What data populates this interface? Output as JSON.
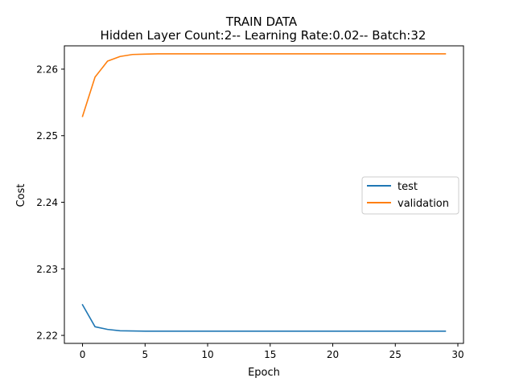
{
  "chart_data": {
    "type": "line",
    "title": "TRAIN DATA",
    "subtitle": "Hidden Layer Count:2-- Learning Rate:0.02-- Batch:32",
    "xlabel": "Epoch",
    "ylabel": "Cost",
    "xlim": [
      -1.45,
      30.45
    ],
    "ylim": [
      2.2188,
      2.2635
    ],
    "xticks": [
      0,
      5,
      10,
      15,
      20,
      25,
      30
    ],
    "xtick_labels": [
      "0",
      "5",
      "10",
      "15",
      "20",
      "25",
      "30"
    ],
    "yticks": [
      2.22,
      2.23,
      2.24,
      2.25,
      2.26
    ],
    "ytick_labels": [
      "2.22",
      "2.23",
      "2.24",
      "2.25",
      "2.26"
    ],
    "grid": false,
    "legend_position": "center-right",
    "x": [
      0,
      1,
      2,
      3,
      4,
      5,
      6,
      7,
      8,
      9,
      10,
      11,
      12,
      13,
      14,
      15,
      16,
      17,
      18,
      19,
      20,
      21,
      22,
      23,
      24,
      25,
      26,
      27,
      28,
      29
    ],
    "series": [
      {
        "name": "test",
        "color": "#1f77b4",
        "values": [
          2.2246,
          2.2213,
          2.2209,
          2.2207,
          2.22066,
          2.22064,
          2.22063,
          2.22063,
          2.22063,
          2.22063,
          2.22063,
          2.22063,
          2.22063,
          2.22063,
          2.22063,
          2.22063,
          2.22063,
          2.22063,
          2.22063,
          2.22063,
          2.22063,
          2.22063,
          2.22063,
          2.22063,
          2.22063,
          2.22063,
          2.22063,
          2.22063,
          2.22063,
          2.22063
        ]
      },
      {
        "name": "validation",
        "color": "#ff7f0e",
        "values": [
          2.2529,
          2.2588,
          2.2612,
          2.2619,
          2.2622,
          2.26225,
          2.2623,
          2.2623,
          2.2623,
          2.2623,
          2.2623,
          2.2623,
          2.2623,
          2.2623,
          2.2623,
          2.2623,
          2.2623,
          2.2623,
          2.2623,
          2.2623,
          2.2623,
          2.2623,
          2.2623,
          2.2623,
          2.2623,
          2.2623,
          2.2623,
          2.2623,
          2.2623,
          2.2623
        ]
      }
    ]
  }
}
